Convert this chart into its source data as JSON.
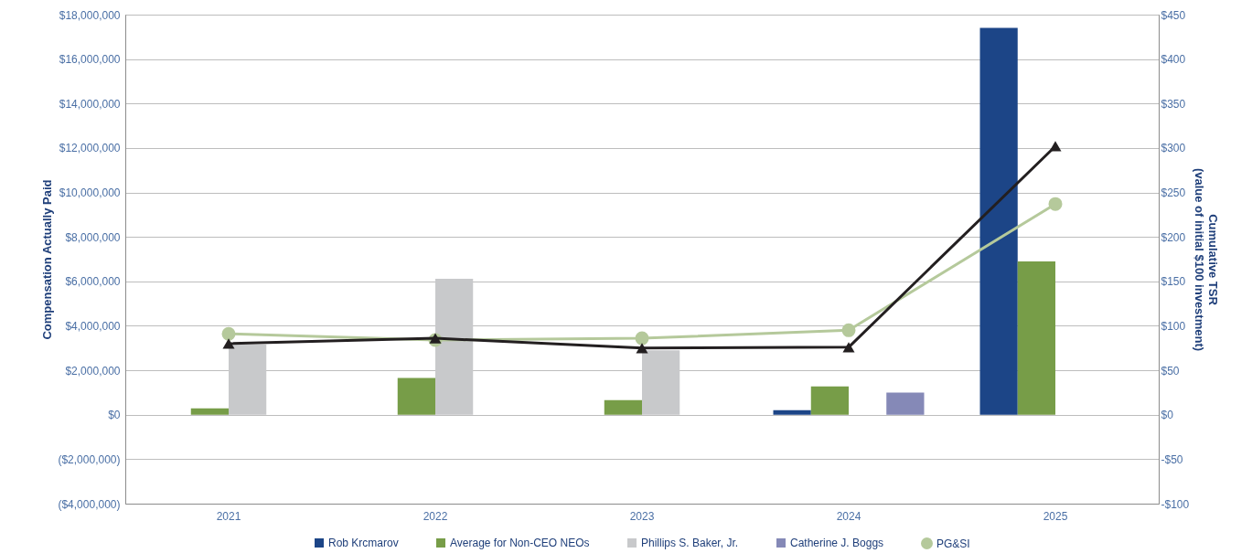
{
  "chart_data": {
    "type": "bar",
    "categories": [
      "2021",
      "2022",
      "2023",
      "2024",
      "2025"
    ],
    "ylabel": "Compensation Actually Paid",
    "y2label": "Cumulative TSR\n(value of initial $100 investment)",
    "ylim": [
      -4000000,
      18000000
    ],
    "yticks": [
      {
        "value": -4000000,
        "label": "($4,000,000)"
      },
      {
        "value": -2000000,
        "label": "($2,000,000)"
      },
      {
        "value": 0,
        "label": "$0"
      },
      {
        "value": 2000000,
        "label": "$2,000,000"
      },
      {
        "value": 4000000,
        "label": "$4,000,000"
      },
      {
        "value": 6000000,
        "label": "$6,000,000"
      },
      {
        "value": 8000000,
        "label": "$8,000,000"
      },
      {
        "value": 10000000,
        "label": "$10,000,000"
      },
      {
        "value": 12000000,
        "label": "$12,000,000"
      },
      {
        "value": 14000000,
        "label": "$14,000,000"
      },
      {
        "value": 16000000,
        "label": "$16,000,000"
      },
      {
        "value": 18000000,
        "label": "$18,000,000"
      }
    ],
    "y2lim": [
      -100,
      450
    ],
    "y2ticks": [
      {
        "value": -100,
        "label": "-$100"
      },
      {
        "value": -50,
        "label": "-$50"
      },
      {
        "value": 0,
        "label": "$0"
      },
      {
        "value": 50,
        "label": "$50"
      },
      {
        "value": 100,
        "label": "$100"
      },
      {
        "value": 150,
        "label": "$150"
      },
      {
        "value": 200,
        "label": "$200"
      },
      {
        "value": 250,
        "label": "$250"
      },
      {
        "value": 300,
        "label": "$300"
      },
      {
        "value": 350,
        "label": "$350"
      },
      {
        "value": 400,
        "label": "$400"
      },
      {
        "value": 450,
        "label": "$450"
      }
    ],
    "grid": "y",
    "legend": "bottom",
    "series": [
      {
        "name": "Rob Krcmarov",
        "color": "#1c4587",
        "values": [
          null,
          null,
          null,
          200000,
          17400000
        ]
      },
      {
        "name": "Average for Non-CEO NEOs",
        "color": "#779d48",
        "values": [
          290000,
          1650000,
          660000,
          1270000,
          6900000
        ]
      },
      {
        "name": "Phillips S. Baker, Jr.",
        "color": "#c8c9cb",
        "values": [
          3160000,
          6120000,
          2900000,
          null,
          null
        ]
      },
      {
        "name": "Catherine J. Boggs",
        "color": "#8589b7",
        "values": [
          null,
          null,
          null,
          1000000,
          null
        ]
      },
      {
        "type": "line",
        "axis": "y2",
        "name": "PG&SI",
        "color": "#b5c99b",
        "marker": "circle",
        "values": [
          91,
          84,
          86,
          95,
          237
        ]
      },
      {
        "type": "line",
        "axis": "y2",
        "color": "#231f20",
        "marker": "triangle",
        "values": [
          80,
          86,
          75,
          76,
          302
        ]
      }
    ]
  }
}
